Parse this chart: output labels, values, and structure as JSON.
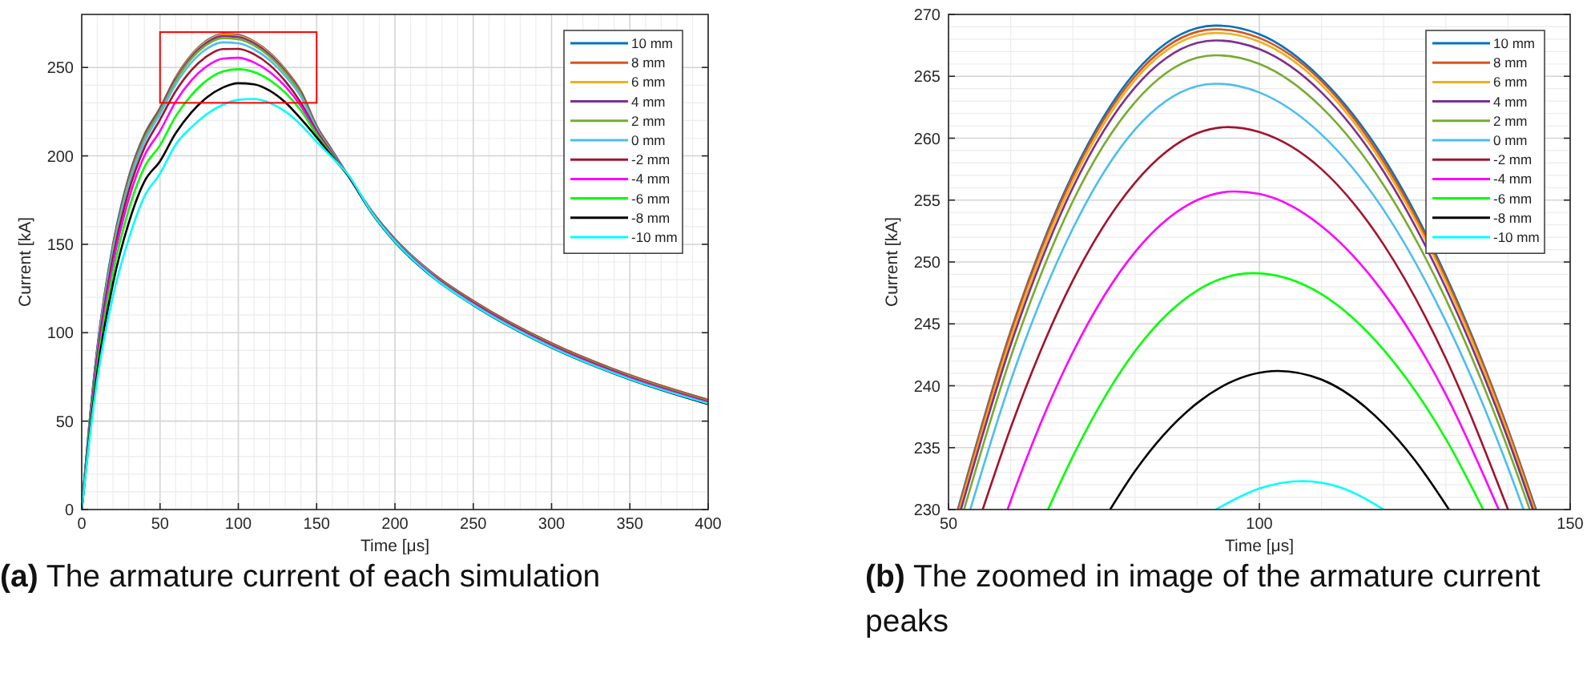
{
  "chart_data": [
    {
      "type": "line",
      "xlabel": "Time [μs]",
      "ylabel": "Current [kA]",
      "xlim": [
        0,
        400
      ],
      "xticks": [
        0,
        50,
        100,
        150,
        200,
        250,
        300,
        350,
        400
      ],
      "ylim": [
        0,
        280
      ],
      "yticks": [
        0,
        50,
        100,
        150,
        200,
        250
      ],
      "grid": true,
      "legend": "top right",
      "line_style": "solid",
      "marker": "none",
      "x": [
        0,
        5,
        10,
        20,
        30,
        40,
        50,
        60,
        70,
        80,
        90,
        100,
        110,
        120,
        130,
        140,
        150,
        160,
        170,
        185,
        200,
        225,
        250,
        300,
        350,
        400
      ],
      "series": [
        {
          "name": "10 mm",
          "color": "#0072bd",
          "values": [
            0,
            50,
            92,
            150,
            188,
            212,
            227.1,
            244.4,
            257.1,
            265.3,
            268.9,
            268.4,
            264.8,
            258.4,
            248.9,
            236.5,
            217,
            203,
            189,
            169,
            153,
            133,
            118,
            94,
            76,
            62
          ]
        },
        {
          "name": "8 mm",
          "color": "#d95319",
          "values": [
            null,
            null,
            null,
            150,
            187.5,
            211.6,
            226.8,
            244.3,
            256.9,
            265.0,
            268.6,
            268.1,
            264.6,
            258.1,
            248.7,
            236.4,
            216.8,
            202.8,
            189,
            169,
            153,
            133,
            118,
            94,
            76,
            62
          ]
        },
        {
          "name": "6 mm",
          "color": "#edb120",
          "values": [
            null,
            null,
            null,
            null,
            null,
            null,
            null,
            243.8,
            256.5,
            264.7,
            268.3,
            267.8,
            264.3,
            257.8,
            248.4,
            236.1,
            null,
            null,
            null,
            null,
            null,
            null,
            null,
            null,
            null,
            null
          ]
        },
        {
          "name": "4 mm",
          "color": "#7e2f8e",
          "values": [
            0,
            49,
            91,
            149,
            186.5,
            210.7,
            226.2,
            243.3,
            256.0,
            264.1,
            267.7,
            267.2,
            263.7,
            257.3,
            247.9,
            235.7,
            216.3,
            202.4,
            189,
            168.8,
            152.7,
            132.6,
            117.6,
            93.6,
            75.6,
            61.6
          ]
        },
        {
          "name": "2 mm",
          "color": "#77ac30",
          "values": [
            0,
            48.5,
            90,
            148,
            185.5,
            209.8,
            225.3,
            242.3,
            254.9,
            262.9,
            266.5,
            266.0,
            262.5,
            256.2,
            247.0,
            234.9,
            215.8,
            202.1,
            189,
            168.7,
            152.5,
            132.4,
            117.4,
            93.4,
            75.4,
            61.3
          ]
        },
        {
          "name": "0 mm",
          "color": "#4dbeee",
          "values": [
            0,
            48,
            89,
            146,
            183.5,
            207.8,
            223.6,
            240.4,
            252.7,
            260.7,
            264.2,
            263.7,
            260.3,
            254.2,
            245.2,
            233.4,
            215,
            201.7,
            189,
            168.5,
            152.3,
            132.1,
            null,
            null,
            null,
            null
          ]
        },
        {
          "name": "-2 mm",
          "color": "#a2142f",
          "values": [
            0,
            47,
            87,
            143,
            180,
            204.5,
            220.5,
            236.6,
            248.5,
            256.4,
            260.4,
            260.5,
            257.5,
            251.4,
            242.2,
            230,
            214,
            201.2,
            189,
            168.4,
            152.1,
            131.8,
            116.8,
            92.8,
            74.8,
            60.8
          ]
        },
        {
          "name": "-4 mm",
          "color": "#ff00ff",
          "values": [
            0,
            45.5,
            84,
            139,
            175.5,
            200,
            214,
            230.7,
            242.7,
            250.8,
            255.0,
            255.5,
            252.9,
            247.5,
            239.3,
            228.1,
            213,
            200.7,
            189,
            168.2,
            151.8,
            131.5,
            116.4,
            92.4,
            74.4,
            60.4
          ]
        },
        {
          "name": "-6 mm",
          "color": "#00ff00",
          "values": [
            0,
            44,
            81,
            134,
            169.5,
            193.5,
            206,
            222.4,
            234.3,
            242.8,
            247.7,
            249.0,
            247.4,
            242.9,
            235.7,
            225.6,
            212,
            200.2,
            189,
            null,
            null,
            null,
            null,
            null,
            null,
            null
          ]
        },
        {
          "name": "-8 mm",
          "color": "#000000",
          "values": [
            0,
            42,
            78,
            128,
            162,
            185.5,
            197,
            212.8,
            224.6,
            233.1,
            238.6,
            241.1,
            240.5,
            236.9,
            230.3,
            220.9,
            210.5,
            199.6,
            189,
            167.9,
            151.3,
            130.8,
            115.6,
            91.6,
            73.6,
            59.6
          ]
        },
        {
          "name": "-10 mm",
          "color": "#00ffff",
          "values": [
            0,
            40,
            74,
            121,
            153,
            177,
            190,
            206.4,
            216.2,
            223.7,
            228.9,
            231.7,
            232.2,
            230.0,
            225.1,
            217.5,
            208,
            199,
            189.5,
            168.2,
            151.6,
            131,
            115.8,
            91.8,
            73.8,
            60
          ]
        }
      ],
      "annotations": [
        "(a) The armature current of each simulation"
      ]
    },
    {
      "type": "line",
      "xlabel": "Time [μs]",
      "ylabel": "Current [kA]",
      "xlim": [
        50,
        150
      ],
      "xticks": [
        50,
        100,
        150
      ],
      "ylim": [
        230,
        270
      ],
      "yticks": [
        230,
        235,
        240,
        245,
        250,
        255,
        260,
        265,
        270
      ],
      "grid": true,
      "legend": "top right",
      "line_style": "solid",
      "marker": "none",
      "series": [
        {
          "name": "10 mm",
          "color": "#0072bd",
          "x": [
            51.5,
            60,
            70,
            80,
            90,
            93,
            100,
            110,
            120,
            130,
            140,
            144.5
          ],
          "values": [
            230,
            244.4,
            257.1,
            265.3,
            268.9,
            269.1,
            268.4,
            264.8,
            258.4,
            248.9,
            236.5,
            230
          ]
        },
        {
          "name": "8 mm",
          "color": "#d95319",
          "x": [
            51.6,
            60,
            70,
            80,
            90,
            93,
            100,
            110,
            120,
            130,
            140,
            144.4
          ],
          "values": [
            230,
            244.3,
            256.9,
            265.0,
            268.6,
            268.8,
            268.1,
            264.6,
            258.1,
            248.7,
            236.4,
            230
          ]
        },
        {
          "name": "6 mm",
          "color": "#edb120",
          "x": [
            51.8,
            60,
            70,
            80,
            90,
            93,
            100,
            110,
            120,
            130,
            140,
            144.2
          ],
          "values": [
            230,
            243.8,
            256.5,
            264.7,
            268.3,
            268.5,
            267.8,
            264.3,
            257.8,
            248.4,
            236.1,
            230
          ]
        },
        {
          "name": "4 mm",
          "color": "#7e2f8e",
          "x": [
            52,
            60,
            70,
            80,
            90,
            93,
            100,
            110,
            120,
            130,
            140,
            144
          ],
          "values": [
            230,
            243.3,
            256.0,
            264.1,
            267.7,
            267.9,
            267.2,
            263.7,
            257.3,
            247.9,
            235.7,
            230
          ]
        },
        {
          "name": "2 mm",
          "color": "#77ac30",
          "x": [
            52.5,
            60,
            70,
            80,
            90,
            93,
            100,
            110,
            120,
            130,
            140,
            143.5
          ],
          "values": [
            230,
            242.3,
            254.9,
            262.9,
            266.5,
            266.7,
            266.0,
            262.5,
            256.2,
            247.0,
            234.9,
            230
          ]
        },
        {
          "name": "0 mm",
          "color": "#4dbeee",
          "x": [
            53.5,
            60,
            70,
            80,
            90,
            93,
            100,
            110,
            120,
            130,
            140,
            142.5
          ],
          "values": [
            230,
            240.4,
            252.7,
            260.7,
            264.2,
            264.4,
            263.7,
            260.3,
            254.2,
            245.2,
            233.4,
            230
          ]
        },
        {
          "name": "-2 mm",
          "color": "#a2142f",
          "x": [
            55.5,
            60,
            70,
            80,
            90,
            95,
            100,
            110,
            120,
            130,
            140
          ],
          "values": [
            230,
            236.6,
            248.5,
            256.4,
            260.4,
            260.9,
            260.5,
            257.5,
            251.4,
            242.2,
            230
          ]
        },
        {
          "name": "-4 mm",
          "color": "#ff00ff",
          "x": [
            59.5,
            60,
            70,
            80,
            90,
            96,
            100,
            110,
            120,
            130,
            138.5
          ],
          "values": [
            230,
            230.7,
            242.7,
            250.8,
            255.0,
            255.7,
            255.5,
            252.9,
            247.5,
            239.3,
            230
          ]
        },
        {
          "name": "-6 mm",
          "color": "#00ff00",
          "x": [
            66,
            70,
            80,
            90,
            99,
            110,
            120,
            130,
            136
          ],
          "values": [
            230,
            234.3,
            242.8,
            247.7,
            249.1,
            247.4,
            242.9,
            235.7,
            230
          ]
        },
        {
          "name": "-8 mm",
          "color": "#000000",
          "x": [
            76,
            80,
            90,
            95,
            103,
            110,
            120,
            125,
            130.5
          ],
          "values": [
            230,
            233.1,
            238.6,
            240.2,
            241.2,
            240.5,
            236.9,
            234.0,
            230
          ]
        },
        {
          "name": "-10 mm",
          "color": "#00ffff",
          "x": [
            93,
            100,
            107,
            113,
            120
          ],
          "values": [
            230,
            231.7,
            232.3,
            231.8,
            230
          ]
        }
      ],
      "annotations": [
        "(b) The zoomed in image of the armature current peaks"
      ]
    }
  ]
}
